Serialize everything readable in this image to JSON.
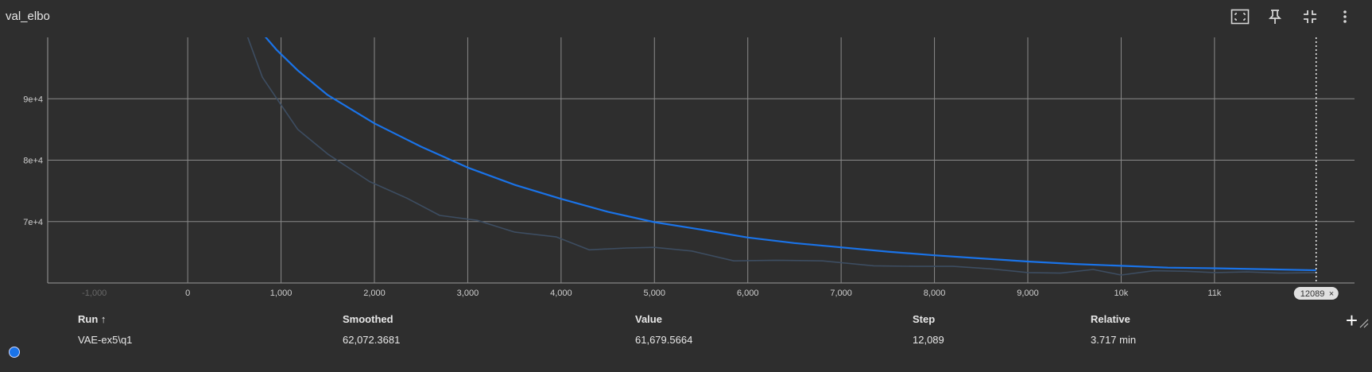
{
  "card": {
    "title": "val_elbo",
    "toolbar": [
      {
        "icon": "fit-domain-icon"
      },
      {
        "icon": "pin-icon"
      },
      {
        "icon": "collapse-icon"
      },
      {
        "icon": "more-vert-icon"
      }
    ]
  },
  "chart_data": {
    "type": "line",
    "xlabel": "",
    "ylabel": "",
    "xlim": [
      -1500,
      12500
    ],
    "ylim": [
      60000,
      100000
    ],
    "x_ticks": [
      -1000,
      0,
      1000,
      2000,
      3000,
      4000,
      5000,
      6000,
      7000,
      8000,
      9000,
      10000,
      11000
    ],
    "x_tick_labels": [
      "-1,000",
      "0",
      "1,000",
      "2,000",
      "3,000",
      "4,000",
      "5,000",
      "6,000",
      "7,000",
      "8,000",
      "9,000",
      "10k",
      "11k"
    ],
    "y_ticks": [
      70000,
      80000,
      90000
    ],
    "y_tick_labels": [
      "7e+4",
      "8e+4",
      "9e+4"
    ],
    "grid": true,
    "series": [
      {
        "name": "VAE-ex5\\q1",
        "kind": "raw",
        "color": "#3d4d61",
        "x": [
          620,
          800,
          1000,
          1180,
          1500,
          1950,
          2350,
          2700,
          3100,
          3500,
          3950,
          4300,
          4700,
          5000,
          5400,
          5850,
          6300,
          6800,
          7350,
          7800,
          8200,
          8600,
          9000,
          9350,
          9700,
          10000,
          10350,
          10700,
          11000,
          11350,
          11700,
          12089
        ],
        "y": [
          101000,
          93500,
          89000,
          85000,
          81000,
          76500,
          73800,
          71000,
          70200,
          68300,
          67500,
          65400,
          65700,
          65800,
          65200,
          63600,
          63700,
          63600,
          62800,
          62700,
          62700,
          62300,
          61700,
          61600,
          62200,
          61300,
          62000,
          61900,
          61700,
          61800,
          61600,
          61680
        ]
      },
      {
        "name": "VAE-ex5\\q1",
        "kind": "smoothed",
        "color": "#1a73e8",
        "x": [
          780,
          950,
          1180,
          1500,
          2000,
          2500,
          3000,
          3500,
          4000,
          4500,
          5000,
          5500,
          6000,
          6500,
          7000,
          7500,
          8000,
          8500,
          9000,
          9500,
          10000,
          10500,
          11000,
          11500,
          12089
        ],
        "y": [
          101000,
          98000,
          94600,
          90600,
          86000,
          82200,
          78800,
          76000,
          73700,
          71600,
          69900,
          68700,
          67400,
          66500,
          65800,
          65100,
          64500,
          64000,
          63500,
          63100,
          62800,
          62500,
          62400,
          62250,
          62072
        ]
      }
    ],
    "hover_step": 12089,
    "hover_step_label": "12089"
  },
  "table": {
    "columns": {
      "run": "Run ↑",
      "smoothed": "Smoothed",
      "value": "Value",
      "step": "Step",
      "relative": "Relative"
    },
    "rows": [
      {
        "color": "#1a73e8",
        "run": "VAE-ex5\\q1",
        "smoothed": "62,072.3681",
        "value": "61,679.5664",
        "step": "12,089",
        "relative": "3.717 min"
      }
    ],
    "add_label": "+"
  }
}
